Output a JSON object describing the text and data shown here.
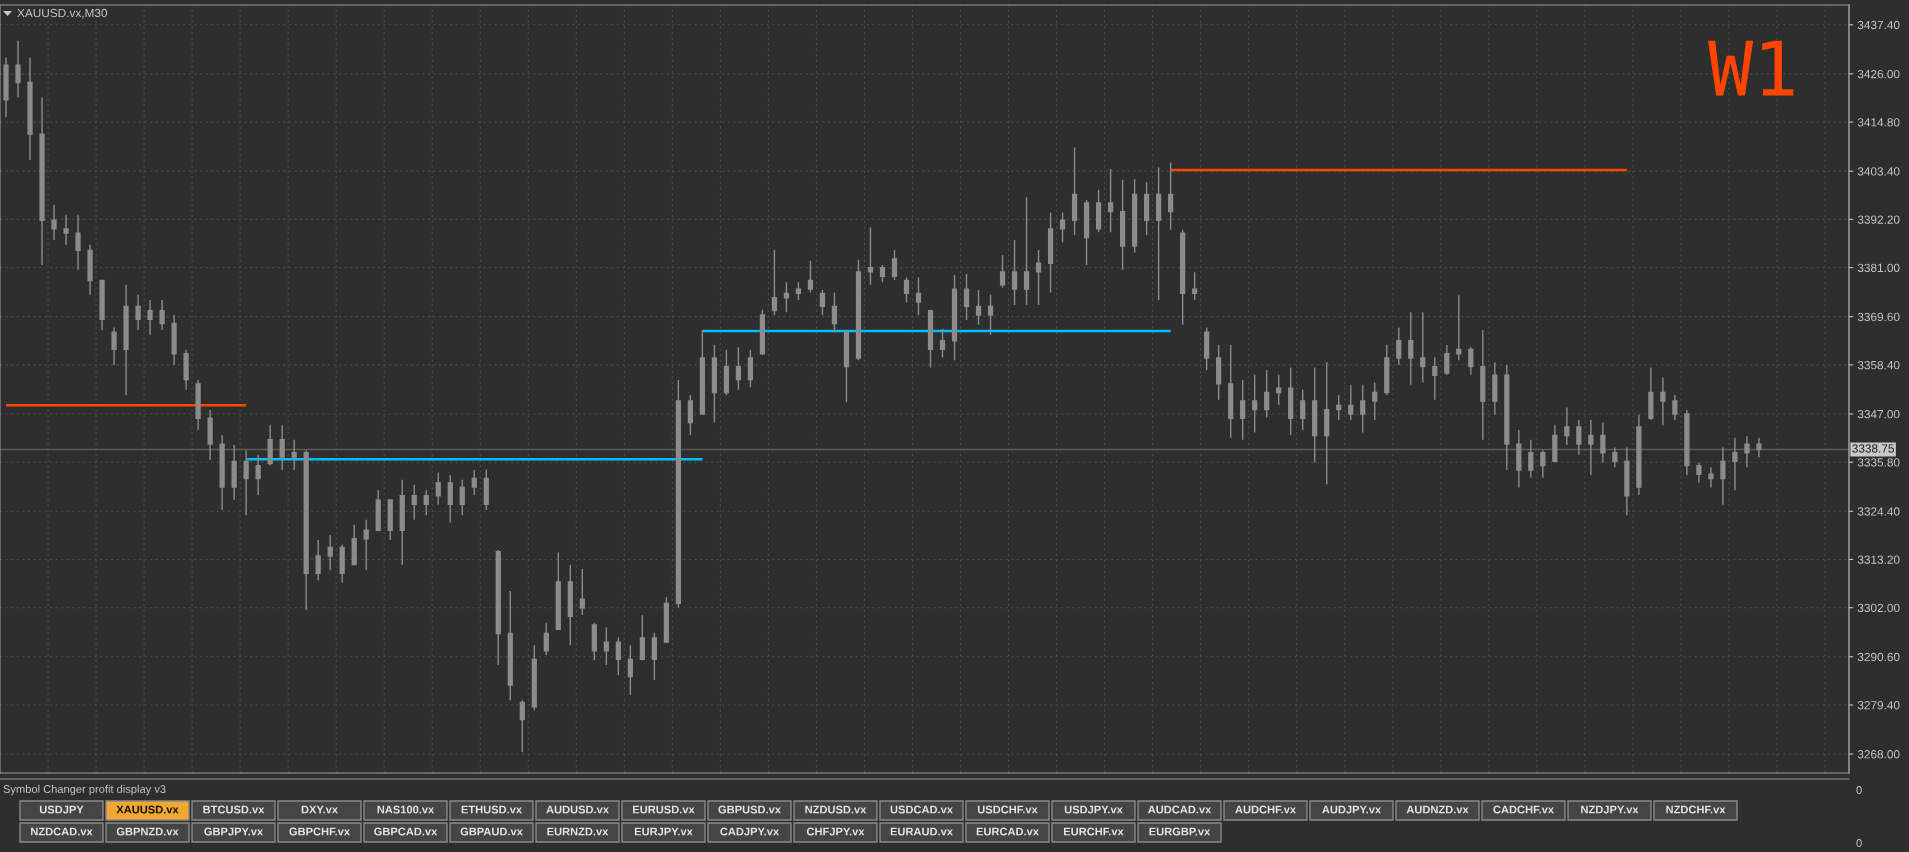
{
  "chart_data": [
    {
      "type": "candlestick",
      "title": "XAUUSD.vx,M30",
      "color": "#8c8c8c",
      "categories": [
        null,
        null,
        null,
        null,
        null,
        null,
        null,
        null,
        null,
        null,
        null,
        null,
        null,
        null,
        null,
        null,
        null,
        null,
        null,
        null,
        null,
        null,
        null,
        null,
        null,
        null,
        null,
        null,
        null,
        null,
        null,
        null,
        null,
        null,
        null,
        null,
        null,
        null,
        null,
        null,
        null,
        null,
        null,
        null,
        null,
        null,
        null,
        null,
        null,
        null,
        null,
        null,
        null,
        null,
        null,
        null,
        null,
        null,
        null,
        null,
        null,
        null,
        null,
        null,
        null,
        null,
        null,
        null,
        null,
        null,
        null,
        null,
        null,
        null,
        null,
        null,
        null,
        null,
        null,
        null,
        null,
        null,
        null,
        null,
        null,
        null,
        null,
        null,
        null,
        null,
        null,
        null,
        null,
        null,
        null,
        null,
        null,
        null,
        null,
        null,
        null,
        null,
        null,
        null,
        null,
        null,
        null,
        null,
        null,
        null,
        null,
        null,
        null,
        null,
        null,
        null,
        null,
        null,
        null,
        null,
        null,
        null,
        null,
        null,
        null,
        null,
        null,
        null,
        null,
        null,
        null,
        null,
        null,
        null,
        null,
        null,
        null,
        null,
        null,
        null,
        null,
        null,
        null,
        null,
        null,
        null,
        null,
        null,
        null,
        null,
        null,
        null,
        null,
        null
      ],
      "ohlc": [
        [
          3420.0,
          3429.8,
          3415.9,
          3428.0
        ],
        [
          3428.0,
          3433.7,
          3420.5,
          3424.0
        ],
        [
          3424.0,
          3429.8,
          3406.0,
          3412.0
        ],
        [
          3412.0,
          3420.5,
          3381.6,
          3392.0
        ],
        [
          3392.0,
          3395.6,
          3387.4,
          3390.0
        ],
        [
          3390.0,
          3393.3,
          3386.3,
          3389.0
        ],
        [
          3389.0,
          3393.3,
          3380.5,
          3385.0
        ],
        [
          3385.0,
          3386.3,
          3374.7,
          3378.0
        ],
        [
          3378.0,
          3378.1,
          3366.5,
          3369.0
        ],
        [
          3366.0,
          3367.1,
          3358.4,
          3362.0
        ],
        [
          3362.0,
          3377.0,
          3351.4,
          3372.0
        ],
        [
          3372.0,
          3374.7,
          3366.5,
          3369.0
        ],
        [
          3369.0,
          3373.5,
          3365.4,
          3371.0
        ],
        [
          3371.0,
          3373.5,
          3366.5,
          3368.0
        ],
        [
          3368.0,
          3370.0,
          3358.4,
          3361.0
        ],
        [
          3361.0,
          3361.9,
          3352.6,
          3355.0
        ],
        [
          3354.0,
          3354.9,
          3343.3,
          3346.0
        ],
        [
          3346.0,
          3347.9,
          3336.3,
          3340.0
        ],
        [
          3340.0,
          3342.1,
          3324.7,
          3330.0
        ],
        [
          3330.0,
          3339.8,
          3327.0,
          3336.0
        ],
        [
          3336.0,
          3338.6,
          3323.5,
          3332.0
        ],
        [
          3332.0,
          3337.5,
          3328.2,
          3335.0
        ],
        [
          3335.5,
          3344.4,
          3335.1,
          3341.0
        ],
        [
          3341.0,
          3344.4,
          3334.0,
          3337.0
        ],
        [
          3337.0,
          3341.0,
          3334.0,
          3338.0
        ],
        [
          3338.0,
          3338.6,
          3301.4,
          3310.0
        ],
        [
          3310.0,
          3317.7,
          3308.4,
          3314.0
        ],
        [
          3314.0,
          3318.9,
          3310.7,
          3316.0
        ],
        [
          3316.0,
          3316.6,
          3307.8,
          3310.0
        ],
        [
          3312.0,
          3321.2,
          3311.9,
          3318.0
        ],
        [
          3318.0,
          3322.4,
          3310.7,
          3320.0
        ],
        [
          3320.0,
          3329.3,
          3320.0,
          3327.0
        ],
        [
          3327.0,
          3327.0,
          3317.7,
          3320.0
        ],
        [
          3320.0,
          3331.7,
          3311.9,
          3328.0
        ],
        [
          3328.0,
          3330.5,
          3322.4,
          3326.0
        ],
        [
          3326.0,
          3329.3,
          3323.5,
          3328.0
        ],
        [
          3328.0,
          3333.4,
          3325.9,
          3331.0
        ],
        [
          3331.0,
          3332.8,
          3321.8,
          3326.0
        ],
        [
          3326.0,
          3331.7,
          3323.5,
          3330.0
        ],
        [
          3330.0,
          3334.0,
          3328.2,
          3332.0
        ],
        [
          3332.0,
          3334.1,
          3324.7,
          3326.0
        ],
        [
          3315.0,
          3315.4,
          3288.7,
          3296.0
        ],
        [
          3296.0,
          3305.9,
          3280.5,
          3284.0
        ],
        [
          3280.0,
          3280.5,
          3268.5,
          3276.0
        ],
        [
          3279.0,
          3293.3,
          3278.2,
          3290.0
        ],
        [
          3292.0,
          3298.5,
          3291.0,
          3296.0
        ],
        [
          3297.0,
          3314.8,
          3296.8,
          3308.0
        ],
        [
          3308.0,
          3311.9,
          3293.3,
          3300.0
        ],
        [
          3302.0,
          3311.0,
          3300.3,
          3304.0
        ],
        [
          3298.0,
          3298.5,
          3289.8,
          3292.0
        ],
        [
          3292.0,
          3297.4,
          3288.7,
          3294.0
        ],
        [
          3294.0,
          3295.1,
          3286.3,
          3290.0
        ],
        [
          3290.0,
          3293.3,
          3281.7,
          3286.0
        ],
        [
          3290.0,
          3300.3,
          3289.8,
          3295.0
        ],
        [
          3295.0,
          3296.2,
          3285.2,
          3290.0
        ],
        [
          3294.0,
          3304.4,
          3293.9,
          3303.0
        ],
        [
          3303.0,
          3354.9,
          3302.0,
          3350.0
        ],
        [
          3350.0,
          3351.4,
          3342.1,
          3345.0
        ],
        [
          3347.0,
          3366.5,
          3346.8,
          3360.0
        ],
        [
          3360.0,
          3363.0,
          3345.0,
          3352.0
        ],
        [
          3352.0,
          3361.9,
          3351.4,
          3358.0
        ],
        [
          3358.0,
          3362.5,
          3352.6,
          3355.0
        ],
        [
          3355.0,
          3361.9,
          3353.2,
          3360.0
        ],
        [
          3361.0,
          3371.2,
          3360.7,
          3370.0
        ],
        [
          3371.0,
          3385.1,
          3370.0,
          3374.0
        ],
        [
          3374.0,
          3377.6,
          3370.6,
          3375.0
        ],
        [
          3375.0,
          3377.6,
          3373.5,
          3376.0
        ],
        [
          3376.0,
          3382.6,
          3375.2,
          3378.0
        ],
        [
          3375.0,
          3375.8,
          3370.0,
          3372.0
        ],
        [
          3372.0,
          3375.2,
          3365.9,
          3368.0
        ],
        [
          3366.0,
          3366.5,
          3349.7,
          3358.0
        ],
        [
          3360.0,
          3382.8,
          3359.5,
          3380.0
        ],
        [
          3380.0,
          3390.3,
          3377.0,
          3381.0
        ],
        [
          3381.0,
          3381.6,
          3377.6,
          3379.0
        ],
        [
          3379.0,
          3385.1,
          3378.1,
          3383.0
        ],
        [
          3378.0,
          3378.7,
          3372.9,
          3375.0
        ],
        [
          3375.0,
          3378.7,
          3370.0,
          3373.0
        ],
        [
          3371.0,
          3371.2,
          3357.8,
          3362.0
        ],
        [
          3362.0,
          3366.8,
          3360.1,
          3364.0
        ],
        [
          3364.0,
          3379.3,
          3359.5,
          3376.0
        ],
        [
          3376.0,
          3379.5,
          3368.8,
          3372.0
        ],
        [
          3372.0,
          3375.8,
          3367.7,
          3370.0
        ],
        [
          3370.0,
          3374.7,
          3365.4,
          3372.0
        ],
        [
          3377.0,
          3383.9,
          3376.4,
          3380.0
        ],
        [
          3380.0,
          3387.4,
          3372.3,
          3376.0
        ],
        [
          3376.0,
          3397.3,
          3372.3,
          3380.0
        ],
        [
          3380.0,
          3385.1,
          3372.3,
          3382.0
        ],
        [
          3382.0,
          3393.8,
          3375.2,
          3390.0
        ],
        [
          3390.0,
          3393.8,
          3386.9,
          3392.0
        ],
        [
          3392.0,
          3408.9,
          3388.6,
          3398.0
        ],
        [
          3396.0,
          3396.7,
          3381.6,
          3388.0
        ],
        [
          3390.0,
          3399.1,
          3389.2,
          3396.0
        ],
        [
          3396.0,
          3403.9,
          3389.2,
          3394.0
        ],
        [
          3394.0,
          3401.4,
          3380.5,
          3386.0
        ],
        [
          3386.0,
          3401.6,
          3384.5,
          3398.0
        ],
        [
          3398.0,
          3400.8,
          3388.6,
          3392.0
        ],
        [
          3392.0,
          3404.3,
          3373.5,
          3398.0
        ],
        [
          3398.0,
          3405.4,
          3389.8,
          3394.0
        ],
        [
          3389.0,
          3389.8,
          3367.7,
          3375.0
        ],
        [
          3375.0,
          3379.9,
          3373.5,
          3376.0
        ],
        [
          3366.0,
          3367.1,
          3357.2,
          3360.0
        ],
        [
          3360.0,
          3363.0,
          3350.3,
          3354.0
        ],
        [
          3354.0,
          3363.0,
          3341.5,
          3346.0
        ],
        [
          3346.0,
          3354.9,
          3341.0,
          3350.0
        ],
        [
          3350.0,
          3356.1,
          3342.7,
          3348.0
        ],
        [
          3348.0,
          3357.2,
          3346.2,
          3352.0
        ],
        [
          3352.0,
          3356.1,
          3349.1,
          3353.0
        ],
        [
          3353.0,
          3357.8,
          3342.1,
          3346.0
        ],
        [
          3346.0,
          3352.6,
          3343.3,
          3350.0
        ],
        [
          3350.0,
          3357.8,
          3335.7,
          3342.0
        ],
        [
          3342.0,
          3359.0,
          3330.7,
          3348.0
        ],
        [
          3348.0,
          3351.4,
          3345.6,
          3349.0
        ],
        [
          3349.0,
          3353.7,
          3345.6,
          3347.0
        ],
        [
          3347.0,
          3353.7,
          3342.7,
          3350.0
        ],
        [
          3350.0,
          3354.3,
          3345.6,
          3352.0
        ],
        [
          3352.0,
          3363.0,
          3351.4,
          3360.0
        ],
        [
          3360.0,
          3367.1,
          3358.4,
          3364.0
        ],
        [
          3364.0,
          3370.6,
          3353.7,
          3360.0
        ],
        [
          3360.0,
          3370.6,
          3354.3,
          3358.0
        ],
        [
          3358.0,
          3360.1,
          3350.3,
          3356.0
        ],
        [
          3356.5,
          3363.0,
          3356.1,
          3361.0
        ],
        [
          3361.0,
          3374.7,
          3359.5,
          3362.0
        ],
        [
          3362.0,
          3362.5,
          3356.1,
          3358.0
        ],
        [
          3358.0,
          3366.5,
          3341.0,
          3350.0
        ],
        [
          3350.0,
          3359.0,
          3346.8,
          3356.0
        ],
        [
          3356.0,
          3358.4,
          3334.0,
          3340.0
        ],
        [
          3340.0,
          3343.3,
          3329.9,
          3334.0
        ],
        [
          3334.0,
          3341.0,
          3332.2,
          3338.0
        ],
        [
          3338.0,
          3338.6,
          3332.2,
          3335.0
        ],
        [
          3336.0,
          3344.4,
          3335.7,
          3342.0
        ],
        [
          3342.0,
          3348.5,
          3339.8,
          3344.0
        ],
        [
          3344.0,
          3345.6,
          3337.5,
          3340.0
        ],
        [
          3340.0,
          3345.6,
          3332.8,
          3342.0
        ],
        [
          3342.0,
          3345.0,
          3335.7,
          3338.0
        ],
        [
          3338.0,
          3339.2,
          3334.6,
          3336.0
        ],
        [
          3336.0,
          3339.2,
          3323.5,
          3328.0
        ],
        [
          3330.0,
          3346.8,
          3328.2,
          3344.0
        ],
        [
          3346.0,
          3357.8,
          3345.6,
          3352.0
        ],
        [
          3352.0,
          3355.5,
          3344.4,
          3350.0
        ],
        [
          3350.0,
          3351.4,
          3345.6,
          3347.0
        ],
        [
          3347.0,
          3347.9,
          3332.8,
          3335.0
        ],
        [
          3335.0,
          3335.7,
          3331.1,
          3333.0
        ],
        [
          3333.0,
          3334.6,
          3329.9,
          3332.0
        ],
        [
          3332.0,
          3339.2,
          3325.9,
          3336.0
        ],
        [
          3336.0,
          3341.5,
          3329.3,
          3338.0
        ],
        [
          3338.0,
          3341.8,
          3334.6,
          3340.0
        ],
        [
          3340.0,
          3341.5,
          3336.9,
          3338.75
        ],
        null,
        null,
        null,
        null,
        null,
        null,
        null
      ],
      "series": [
        {
          "type": "line",
          "color": "#ff4500",
          "values": [
            3349.0,
            3349.0,
            3349.0,
            3349.0,
            3349.0,
            3349.0,
            3349.0,
            3349.0,
            3349.0,
            3349.0,
            3349.0,
            3349.0,
            3349.0,
            3349.0,
            3349.0,
            3349.0,
            3349.0,
            3349.0,
            3349.0,
            3349.0,
            3349.0,
            null,
            null,
            null,
            null,
            null,
            null,
            null,
            null,
            null,
            null,
            null,
            null,
            null,
            null,
            null,
            null,
            null,
            null,
            null,
            null,
            null,
            null,
            null,
            null,
            null,
            null,
            null,
            null,
            null,
            null,
            null,
            null,
            null,
            null,
            null,
            null,
            null,
            null,
            null,
            null,
            null,
            null,
            null,
            null,
            null,
            null,
            null,
            null,
            null,
            null,
            null,
            null,
            null,
            null,
            null,
            null,
            null,
            null,
            null,
            null,
            null,
            null,
            null,
            null,
            null,
            null,
            null,
            null,
            null,
            null,
            null,
            null,
            null,
            null,
            null,
            null,
            null,
            null,
            null,
            null,
            null,
            null,
            null,
            null,
            null,
            null,
            null,
            null,
            null,
            null,
            null,
            null,
            null,
            null,
            null,
            null,
            null,
            null,
            null,
            null,
            null,
            null,
            null,
            null,
            null,
            null,
            null,
            null,
            null,
            null,
            null,
            null,
            null,
            null,
            null,
            null,
            null,
            null,
            null,
            null,
            null,
            null,
            null,
            null,
            null,
            null,
            null,
            null,
            null,
            null,
            null,
            null,
            null
          ]
        },
        {
          "type": "line",
          "color": "#00bfff",
          "values": [
            null,
            null,
            null,
            null,
            null,
            null,
            null,
            null,
            null,
            null,
            null,
            null,
            null,
            null,
            null,
            null,
            null,
            null,
            null,
            null,
            3336.5,
            3336.5,
            3336.5,
            3336.5,
            3336.5,
            3336.5,
            3336.5,
            3336.5,
            3336.5,
            3336.5,
            3336.5,
            3336.5,
            3336.5,
            3336.5,
            3336.5,
            3336.5,
            3336.5,
            3336.5,
            3336.5,
            3336.5,
            3336.5,
            3336.5,
            3336.5,
            3336.5,
            3336.5,
            3336.5,
            3336.5,
            3336.5,
            3336.5,
            3336.5,
            3336.5,
            3336.5,
            3336.5,
            3336.5,
            3336.5,
            3336.5,
            3336.5,
            3336.5,
            3336.5,
            null,
            null,
            null,
            null,
            null,
            null,
            null,
            null,
            null,
            null,
            null,
            null,
            null,
            null,
            null,
            null,
            null,
            null,
            null,
            null,
            null,
            null,
            null,
            null,
            null,
            null,
            null,
            null,
            null,
            null,
            null,
            null,
            null,
            null,
            null,
            null,
            null,
            null,
            null,
            null,
            null,
            null,
            null,
            null,
            null,
            null,
            null,
            null,
            null,
            null,
            null,
            null,
            null,
            null,
            null,
            null,
            null,
            null,
            null,
            null,
            null,
            null,
            null,
            null,
            null,
            null,
            null,
            null,
            null,
            null,
            null,
            null,
            null,
            null,
            null,
            null,
            null,
            null,
            null,
            null,
            null,
            null,
            null,
            null,
            null,
            null,
            null,
            null,
            null,
            null,
            null,
            null,
            null,
            null,
            null
          ]
        },
        {
          "type": "line",
          "color": "#00bfff",
          "values": [
            null,
            null,
            null,
            null,
            null,
            null,
            null,
            null,
            null,
            null,
            null,
            null,
            null,
            null,
            null,
            null,
            null,
            null,
            null,
            null,
            null,
            null,
            null,
            null,
            null,
            null,
            null,
            null,
            null,
            null,
            null,
            null,
            null,
            null,
            null,
            null,
            null,
            null,
            null,
            null,
            null,
            null,
            null,
            null,
            null,
            null,
            null,
            null,
            null,
            null,
            null,
            null,
            null,
            null,
            null,
            null,
            null,
            null,
            3366.3,
            3366.3,
            3366.3,
            3366.3,
            3366.3,
            3366.3,
            3366.3,
            3366.3,
            3366.3,
            3366.3,
            3366.3,
            3366.3,
            3366.3,
            3366.3,
            3366.3,
            3366.3,
            3366.3,
            3366.3,
            3366.3,
            3366.3,
            3366.3,
            3366.3,
            3366.3,
            3366.3,
            3366.3,
            3366.3,
            3366.3,
            3366.3,
            3366.3,
            3366.3,
            3366.3,
            3366.3,
            3366.3,
            3366.3,
            3366.3,
            3366.3,
            3366.3,
            3366.3,
            3366.3,
            3366.3,
            null,
            null,
            null,
            null,
            null,
            null,
            null,
            null,
            null,
            null,
            null,
            null,
            null,
            null,
            null,
            null,
            null,
            null,
            null,
            null,
            null,
            null,
            null,
            null,
            null,
            null,
            null,
            null,
            null,
            null,
            null,
            null,
            null,
            null,
            null,
            null,
            null,
            null,
            null,
            null,
            null,
            null,
            null,
            null,
            null,
            null,
            null,
            null,
            null,
            null,
            null,
            null,
            null,
            null,
            null,
            null
          ]
        },
        {
          "type": "line",
          "color": "#ff4500",
          "values": [
            null,
            null,
            null,
            null,
            null,
            null,
            null,
            null,
            null,
            null,
            null,
            null,
            null,
            null,
            null,
            null,
            null,
            null,
            null,
            null,
            null,
            null,
            null,
            null,
            null,
            null,
            null,
            null,
            null,
            null,
            null,
            null,
            null,
            null,
            null,
            null,
            null,
            null,
            null,
            null,
            null,
            null,
            null,
            null,
            null,
            null,
            null,
            null,
            null,
            null,
            null,
            null,
            null,
            null,
            null,
            null,
            null,
            null,
            null,
            null,
            null,
            null,
            null,
            null,
            null,
            null,
            null,
            null,
            null,
            null,
            null,
            null,
            null,
            null,
            null,
            null,
            null,
            null,
            null,
            null,
            null,
            null,
            null,
            null,
            null,
            null,
            null,
            null,
            null,
            null,
            null,
            null,
            null,
            null,
            null,
            null,
            null,
            3403.7,
            3403.7,
            3403.7,
            3403.7,
            3403.7,
            3403.7,
            3403.7,
            3403.7,
            3403.7,
            3403.7,
            3403.7,
            3403.7,
            3403.7,
            3403.7,
            3403.7,
            3403.7,
            3403.7,
            3403.7,
            3403.7,
            3403.7,
            3403.7,
            3403.7,
            3403.7,
            3403.7,
            3403.7,
            3403.7,
            3403.7,
            3403.7,
            3403.7,
            3403.7,
            3403.7,
            3403.7,
            3403.7,
            3403.7,
            3403.7,
            3403.7,
            3403.7,
            3403.7,
            3403.7,
            null,
            null,
            null,
            null,
            null,
            null,
            null,
            null,
            null,
            null,
            null,
            null,
            null,
            null,
            null,
            null,
            null,
            null
          ]
        }
      ],
      "ylim": [
        3263.6,
        3442.0
      ],
      "yticks": [
        {
          "value": 3268.0,
          "label": "3268.00"
        },
        {
          "value": 3279.4,
          "label": "3279.40"
        },
        {
          "value": 3290.6,
          "label": "3290.60"
        },
        {
          "value": 3302.0,
          "label": "3302.00"
        },
        {
          "value": 3313.2,
          "label": "3313.20"
        },
        {
          "value": 3324.4,
          "label": "3324.40"
        },
        {
          "value": 3335.8,
          "label": "3335.80"
        },
        {
          "value": 3347.0,
          "label": "3347.00"
        },
        {
          "value": 3358.4,
          "label": "3358.40"
        },
        {
          "value": 3369.6,
          "label": "3369.60"
        },
        {
          "value": 3381.0,
          "label": "3381.00"
        },
        {
          "value": 3392.2,
          "label": "3392.20"
        },
        {
          "value": 3403.4,
          "label": "3403.40"
        },
        {
          "value": 3414.8,
          "label": "3414.80"
        },
        {
          "value": 3426.0,
          "label": "3426.00"
        },
        {
          "value": 3437.4,
          "label": "3437.40"
        }
      ],
      "grid": true,
      "tick_labels": "y",
      "ref_lines": [
        {
          "axis": "y",
          "value": 3338.75,
          "label": "3338.75",
          "color": "#5a5a5a"
        }
      ],
      "annotations": [
        "W1"
      ]
    },
    {
      "type": "other",
      "title": "Symbol Changer profit display v3",
      "categories": [
        "USDJPY",
        "XAUUSD.vx",
        "BTCUSD.vx",
        "DXY.vx",
        "NAS100.vx",
        "ETHUSD.vx",
        "AUDUSD.vx",
        "EURUSD.vx",
        "GBPUSD.vx",
        "NZDUSD.vx",
        "USDCAD.vx",
        "USDCHF.vx",
        "USDJPY.vx",
        "AUDCAD.vx",
        "AUDCHF.vx",
        "AUDJPY.vx",
        "AUDNZD.vx",
        "CADCHF.vx",
        "NZDJPY.vx",
        "NZDCHF.vx",
        "NZDCAD.vx",
        "GBPNZD.vx",
        "GBPJPY.vx",
        "GBPCHF.vx",
        "GBPCAD.vx",
        "GBPAUD.vx",
        "EURNZD.vx",
        "EURJPY.vx",
        "CADJPY.vx",
        "CHFJPY.vx",
        "EURAUD.vx",
        "EURCAD.vx",
        "EURCHF.vx",
        "EURGBP.vx"
      ],
      "colors": [
        "#454545",
        "#f0a830",
        "#454545",
        "#454545",
        "#454545",
        "#454545",
        "#454545",
        "#454545",
        "#454545",
        "#454545",
        "#454545",
        "#454545",
        "#454545",
        "#454545",
        "#454545",
        "#454545",
        "#454545",
        "#454545",
        "#454545",
        "#454545",
        "#454545",
        "#454545",
        "#454545",
        "#454545",
        "#454545",
        "#454545",
        "#454545",
        "#454545",
        "#454545",
        "#454545",
        "#454545",
        "#454545",
        "#454545",
        "#454545"
      ],
      "annotations": [
        "0",
        "0"
      ]
    }
  ]
}
